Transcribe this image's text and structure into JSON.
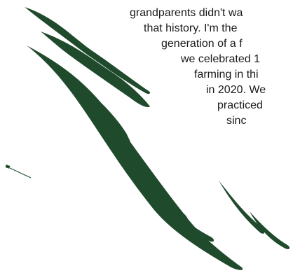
{
  "story": {
    "lines": [
      "grandparents didn't wa",
      "that history. I'm the",
      "generation of a f",
      "we celebrated 1",
      "farming in thi",
      "in 2020. We",
      "practiced",
      "sinc"
    ]
  },
  "colors": {
    "brush_green": "#1f4a2c",
    "text": "#1a1a1a",
    "background": "#ffffff"
  }
}
